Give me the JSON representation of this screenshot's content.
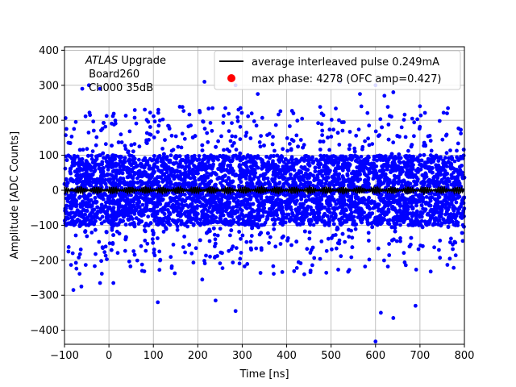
{
  "chart_data": {
    "type": "scatter",
    "title": "",
    "xlabel": "Time [ns]",
    "ylabel": "Amplitude [ADC Counts]",
    "xlim": [
      -100,
      800
    ],
    "ylim": [
      -440,
      410
    ],
    "xticks": [
      -100,
      0,
      100,
      200,
      300,
      400,
      500,
      600,
      700,
      800
    ],
    "yticks": [
      -400,
      -300,
      -200,
      -100,
      0,
      100,
      200,
      300,
      400
    ],
    "grid": true,
    "legend_position": "top-right",
    "annotation": {
      "italic": "ATLAS",
      "rest": " Upgrade",
      "line2": " Board260",
      "line3": " Ch000 35dB"
    },
    "series": [
      {
        "name": "",
        "kind": "scatter",
        "color": "#0000ff",
        "description_stats": {
          "core_band": [
            -100,
            100
          ],
          "point_count_estimate": 9000
        },
        "notable_outliers": [
          {
            "x": -80,
            "y": -285
          },
          {
            "x": -62,
            "y": -275
          },
          {
            "x": -20,
            "y": -265
          },
          {
            "x": 10,
            "y": -265
          },
          {
            "x": 110,
            "y": -320
          },
          {
            "x": 210,
            "y": -255
          },
          {
            "x": 240,
            "y": -315
          },
          {
            "x": 285,
            "y": -345
          },
          {
            "x": 600,
            "y": -432
          },
          {
            "x": 612,
            "y": -350
          },
          {
            "x": 640,
            "y": -365
          },
          {
            "x": 690,
            "y": -330
          },
          {
            "x": -60,
            "y": 290
          },
          {
            "x": -45,
            "y": 300
          },
          {
            "x": -20,
            "y": 290
          },
          {
            "x": 215,
            "y": 310
          },
          {
            "x": 285,
            "y": 300
          },
          {
            "x": 335,
            "y": 275
          },
          {
            "x": 520,
            "y": 310
          },
          {
            "x": 565,
            "y": 275
          },
          {
            "x": 600,
            "y": 300
          },
          {
            "x": 620,
            "y": 270
          },
          {
            "x": 640,
            "y": 280
          },
          {
            "x": 700,
            "y": 240
          }
        ]
      },
      {
        "name": "average interleaved pulse 0.249mA",
        "kind": "line",
        "color": "#000000",
        "x_range": [
          -100,
          800
        ],
        "amplitude": 10
      },
      {
        "name": "max phase: 4278 (OFC amp=0.427)",
        "kind": "marker",
        "color": "#ff0000"
      }
    ]
  }
}
